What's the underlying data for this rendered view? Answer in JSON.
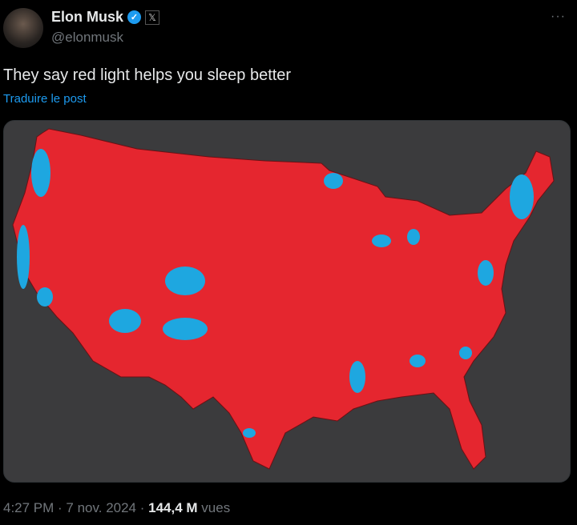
{
  "author": {
    "name": "Elon Musk",
    "handle": "@elonmusk",
    "verified_icon": "verified-badge-icon",
    "affiliate_icon": "x-logo-icon"
  },
  "menu": {
    "more_label": "···"
  },
  "post": {
    "text": "They say red light helps you sleep better",
    "translate_label": "Traduire le post"
  },
  "media": {
    "colors": {
      "background": "#3b3b3d",
      "red": "#e5262f",
      "blue": "#1ea7e0"
    }
  },
  "meta": {
    "time": "4:27 PM",
    "sep1": " · ",
    "date": "7 nov. 2024",
    "sep2": " · ",
    "views": "144,4 M",
    "views_label": " vues"
  }
}
